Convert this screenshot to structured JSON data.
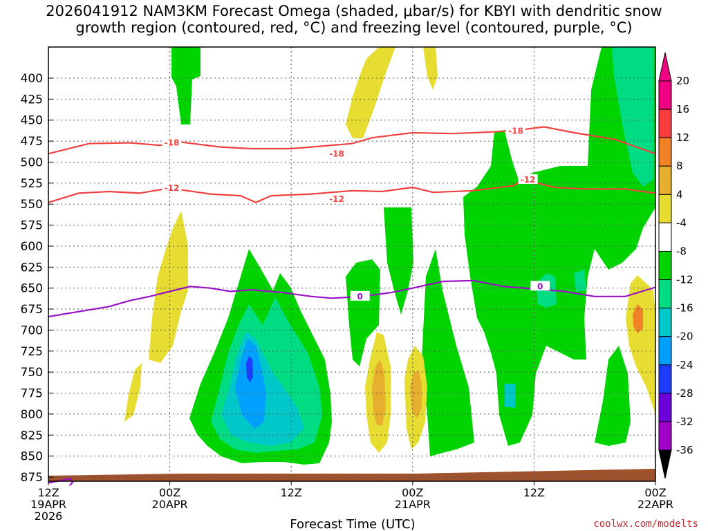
{
  "title_line1": "2026041912 NAM3KM Forecast Omega (shaded, μbar/s) for KBYI with dendritic snow",
  "title_line2": "growth region (contoured, red, °C) and freezing level (contoured, purple, °C)",
  "credit": "coolwx.com/modelts",
  "chart_data": {
    "type": "contour-time-height",
    "title": "2026041912 NAM3KM Forecast Omega (shaded, μbar/s) for KBYI with dendritic snow growth region (contoured, red, °C) and freezing level (contoured, purple, °C)",
    "xlabel": "Forecast Time (UTC)",
    "ylabel": "",
    "x_range_hours": [
      0,
      60
    ],
    "x_ticks": [
      {
        "h": 0,
        "lines": [
          "12Z",
          "19APR",
          "2026"
        ]
      },
      {
        "h": 12,
        "lines": [
          "00Z",
          "20APR"
        ]
      },
      {
        "h": 24,
        "lines": [
          "12Z"
        ]
      },
      {
        "h": 36,
        "lines": [
          "00Z",
          "21APR"
        ]
      },
      {
        "h": 48,
        "lines": [
          "12Z"
        ]
      },
      {
        "h": 60,
        "lines": [
          "00Z",
          "22APR"
        ]
      }
    ],
    "y_pressure_ticks": [
      400,
      425,
      450,
      475,
      500,
      525,
      550,
      575,
      600,
      625,
      650,
      675,
      700,
      725,
      750,
      775,
      800,
      825,
      850,
      875
    ],
    "y_range": [
      880,
      380
    ],
    "colorbar": {
      "levels": [
        -36,
        -32,
        -28,
        -24,
        -20,
        -16,
        -12,
        -8,
        -4,
        4,
        8,
        12,
        16,
        20
      ],
      "colors": [
        "#a0a0a0",
        "#a000c8",
        "#6e00dc",
        "#1e3cff",
        "#00a0ff",
        "#00c8c8",
        "#00dc82",
        "#00d400",
        "#ffffff",
        "#e6dc32",
        "#e6af2d",
        "#f08228",
        "#fa3c3c",
        "#f00082"
      ]
    },
    "contours": [
      {
        "name": "-18",
        "color": "#f04040",
        "points": [
          [
            0,
            490
          ],
          [
            4,
            478
          ],
          [
            8,
            477
          ],
          [
            11,
            480
          ],
          [
            13,
            476
          ],
          [
            17,
            482
          ],
          [
            20,
            484
          ],
          [
            24,
            484
          ],
          [
            27,
            481
          ],
          [
            30,
            478
          ],
          [
            32,
            471
          ],
          [
            36,
            465
          ],
          [
            40,
            466
          ],
          [
            44,
            464
          ],
          [
            47,
            461
          ],
          [
            49,
            458
          ],
          [
            52,
            465
          ],
          [
            56,
            473
          ],
          [
            60,
            490
          ]
        ],
        "labels": [
          [
            12.2,
            477
          ],
          [
            28.5,
            490
          ],
          [
            46.2,
            463
          ]
        ]
      },
      {
        "name": "-12",
        "color": "#f04040",
        "points": [
          [
            0,
            548
          ],
          [
            3,
            537
          ],
          [
            6,
            535
          ],
          [
            9,
            537
          ],
          [
            12,
            531
          ],
          [
            16,
            538
          ],
          [
            19,
            540
          ],
          [
            20.5,
            548
          ],
          [
            22,
            540
          ],
          [
            26,
            538
          ],
          [
            30,
            534
          ],
          [
            33,
            535
          ],
          [
            36,
            530
          ],
          [
            38,
            536
          ],
          [
            42,
            534
          ],
          [
            46,
            528
          ],
          [
            47,
            520
          ],
          [
            48,
            524
          ],
          [
            50,
            530
          ],
          [
            53,
            532
          ],
          [
            57,
            532
          ],
          [
            60,
            537
          ]
        ],
        "labels": [
          [
            12.2,
            531
          ],
          [
            28.5,
            544
          ],
          [
            47.4,
            521
          ]
        ]
      },
      {
        "name": "0",
        "color": "#9a10c8",
        "points": [
          [
            0,
            684
          ],
          [
            3,
            678
          ],
          [
            6,
            672
          ],
          [
            8,
            665
          ],
          [
            10,
            660
          ],
          [
            12,
            654
          ],
          [
            14,
            648
          ],
          [
            16,
            650
          ],
          [
            18,
            654
          ],
          [
            20,
            652
          ],
          [
            23,
            655
          ],
          [
            26,
            660
          ],
          [
            28,
            662
          ],
          [
            31,
            660
          ],
          [
            34,
            655
          ],
          [
            36,
            650
          ],
          [
            39,
            642
          ],
          [
            42,
            641
          ],
          [
            45,
            648
          ],
          [
            48,
            651
          ],
          [
            51,
            654
          ],
          [
            54,
            660
          ],
          [
            57,
            660
          ],
          [
            60,
            649
          ]
        ],
        "labels": [
          [
            30.8,
            660
          ],
          [
            48.6,
            648
          ]
        ]
      },
      {
        "name": "freezing-level-surface",
        "color": "#9a10c8",
        "points": [
          [
            0,
            882
          ],
          [
            1.2,
            879
          ],
          [
            2.2,
            877
          ],
          [
            2.4,
            881
          ],
          [
            2.1,
            885
          ]
        ],
        "labels": []
      }
    ]
  }
}
